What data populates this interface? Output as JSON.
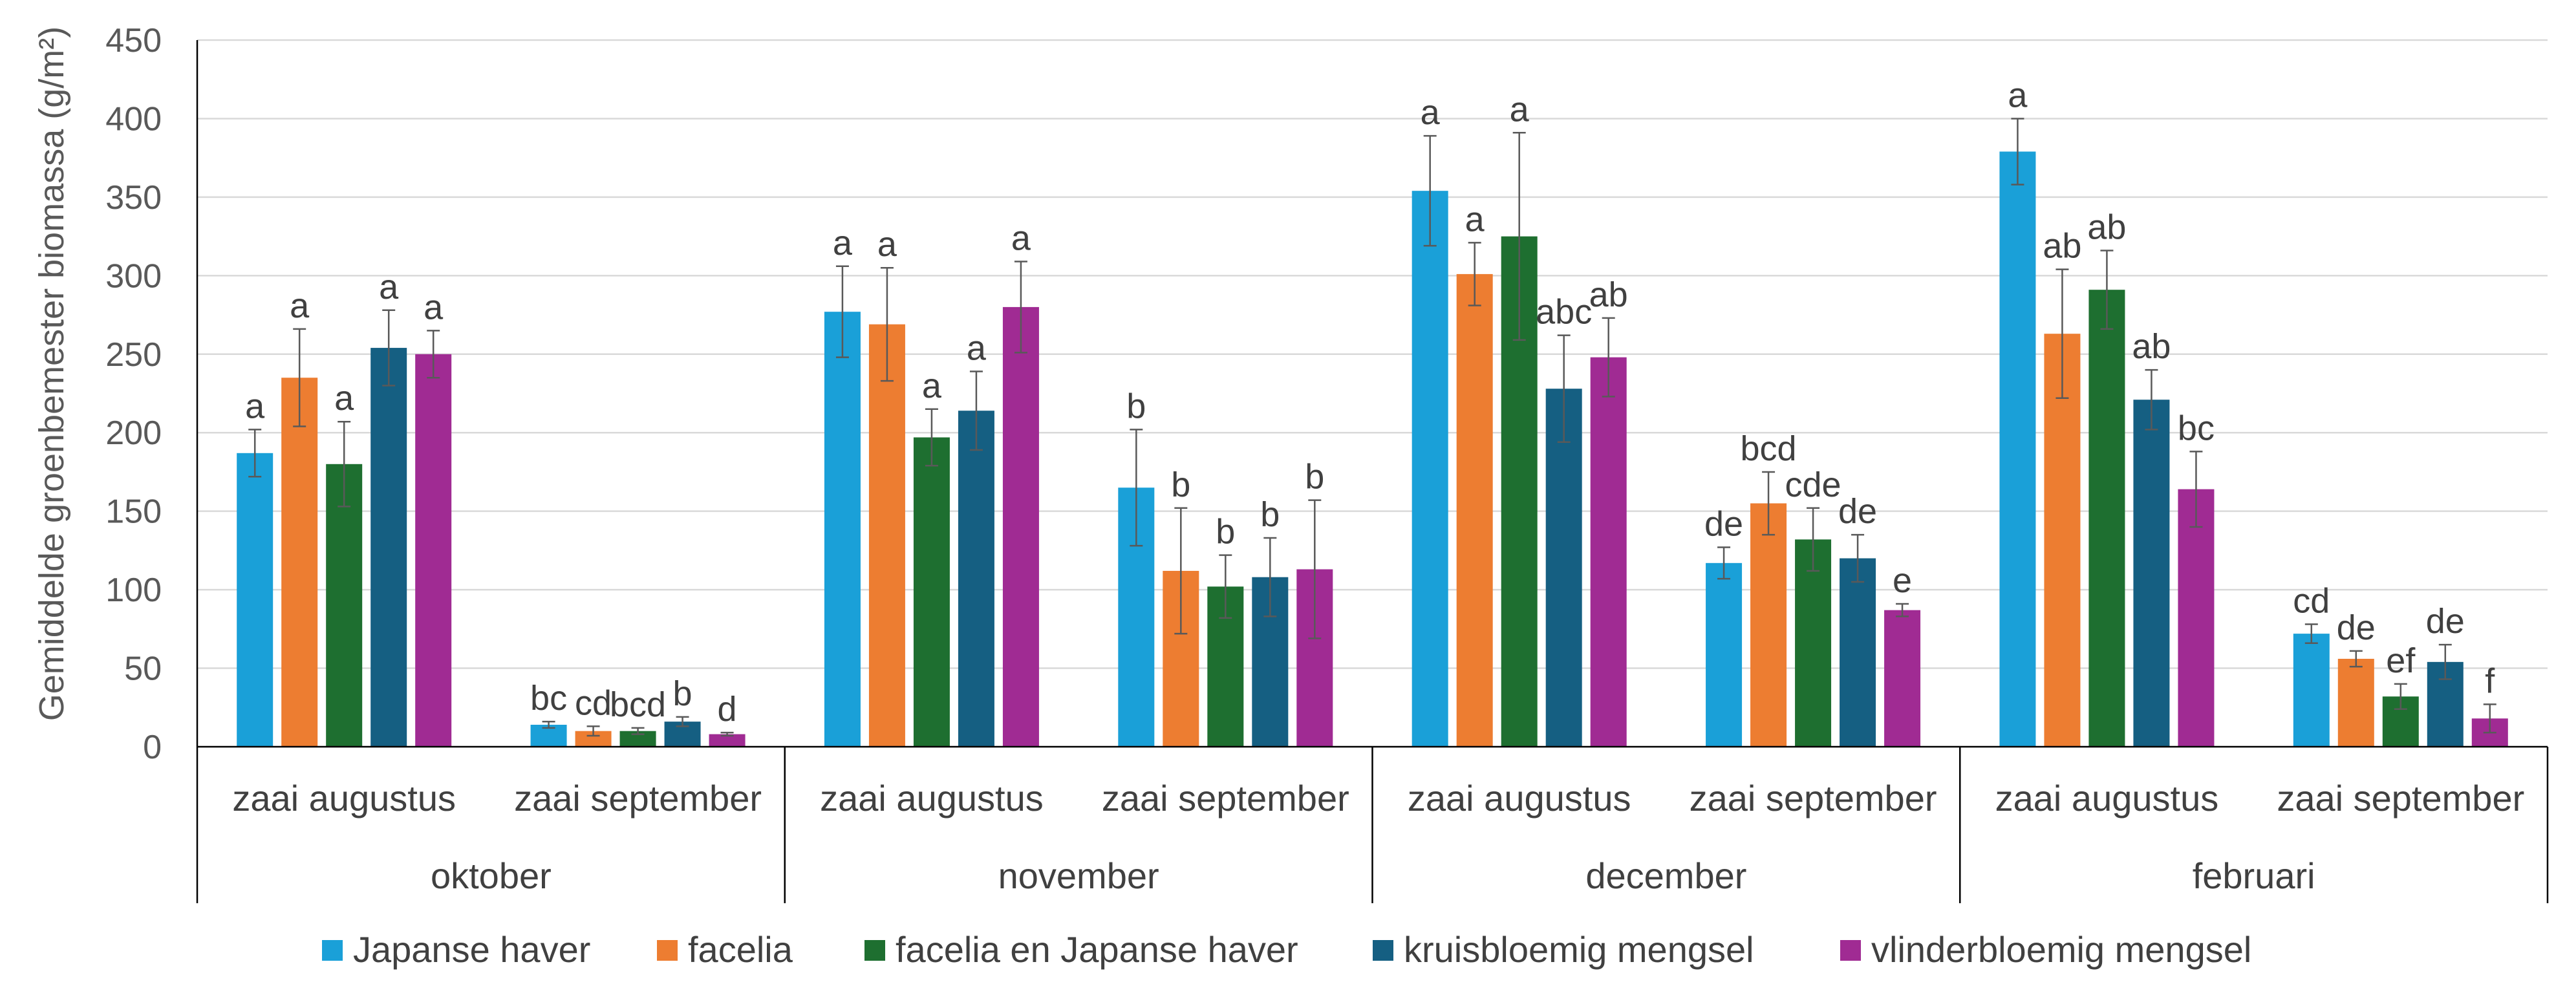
{
  "chart_data": {
    "type": "bar",
    "ylabel": "Gemiddelde groenbemester biomassa (g/m²)",
    "ylim": [
      0,
      450
    ],
    "yticks": [
      0,
      50,
      100,
      150,
      200,
      250,
      300,
      350,
      400,
      450
    ],
    "grid": true,
    "legend_position": "bottom",
    "months": [
      "oktober",
      "november",
      "december",
      "februari"
    ],
    "sowings": [
      "zaai augustus",
      "zaai september"
    ],
    "series": [
      {
        "name": "Japanse haver",
        "color": "#1aa0d8",
        "values": [
          187,
          14,
          277,
          165,
          354,
          117,
          379,
          72
        ],
        "errors": [
          15,
          2,
          29,
          37,
          35,
          10,
          21,
          6
        ],
        "letters": [
          "a",
          "bc",
          "a",
          "b",
          "a",
          "de",
          "a",
          "cd"
        ]
      },
      {
        "name": "facelia",
        "color": "#ed7d31",
        "values": [
          235,
          10,
          269,
          112,
          301,
          155,
          263,
          56
        ],
        "errors": [
          31,
          3,
          36,
          40,
          20,
          20,
          41,
          5
        ],
        "letters": [
          "a",
          "cd",
          "a",
          "b",
          "a",
          "bcd",
          "ab",
          "de"
        ]
      },
      {
        "name": "facelia en Japanse haver",
        "color": "#1e6f30",
        "values": [
          180,
          10,
          197,
          102,
          325,
          132,
          291,
          32
        ],
        "errors": [
          27,
          2,
          18,
          20,
          66,
          20,
          25,
          8
        ],
        "letters": [
          "a",
          "bcd",
          "a",
          "b",
          "a",
          "cde",
          "ab",
          "ef"
        ]
      },
      {
        "name": "kruisbloemig mengsel",
        "color": "#155f82",
        "values": [
          254,
          16,
          214,
          108,
          228,
          120,
          221,
          54
        ],
        "errors": [
          24,
          3,
          25,
          25,
          34,
          15,
          19,
          11
        ],
        "letters": [
          "a",
          "b",
          "a",
          "b",
          "abc",
          "de",
          "ab",
          "de"
        ]
      },
      {
        "name": "vlinderbloemig mengsel",
        "color": "#a02b93",
        "values": [
          250,
          8,
          280,
          113,
          248,
          87,
          164,
          18
        ],
        "errors": [
          15,
          1,
          29,
          44,
          25,
          4,
          24,
          9
        ],
        "letters": [
          "a",
          "d",
          "a",
          "b",
          "ab",
          "e",
          "bc",
          "f"
        ]
      }
    ]
  }
}
